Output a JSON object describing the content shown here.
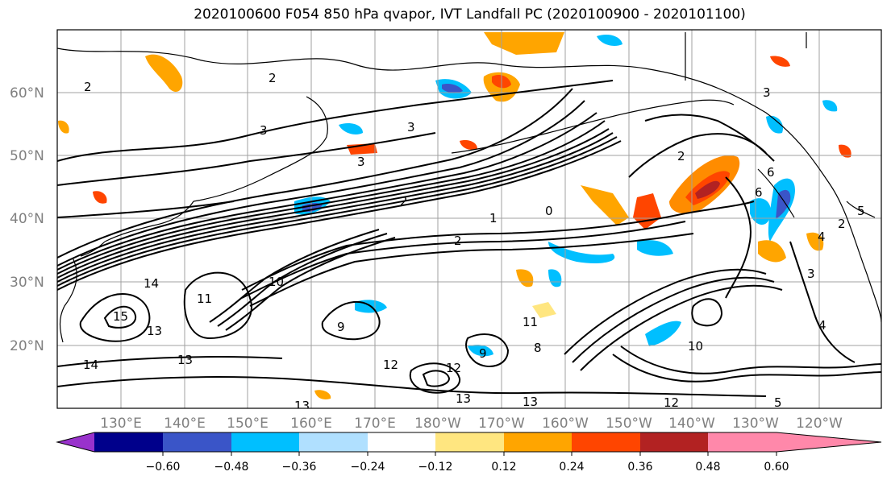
{
  "title": "2020100600 F054 850 hPa qvapor, IVT Landfall PC (2020100900 - 2020101100)",
  "map": {
    "lat_labels": [
      "60°N",
      "50°N",
      "40°N",
      "30°N",
      "20°N"
    ],
    "lon_labels": [
      "130°E",
      "140°E",
      "150°E",
      "160°E",
      "170°E",
      "180°W",
      "170°W",
      "160°W",
      "150°W",
      "140°W",
      "130°W",
      "120°W"
    ],
    "contour_labels": [
      "2",
      "2",
      "3",
      "3",
      "3",
      "2",
      "2",
      "1",
      "0",
      "2",
      "3",
      "6",
      "6",
      "4",
      "2",
      "5",
      "14",
      "15",
      "13",
      "13",
      "14",
      "11",
      "10",
      "12",
      "12",
      "13",
      "13",
      "11",
      "8",
      "10",
      "12",
      "13",
      "3",
      "4",
      "5",
      "9",
      "9"
    ]
  },
  "colorbar": {
    "ticks": [
      "−0.60",
      "−0.48",
      "−0.36",
      "−0.24",
      "−0.12",
      "0.12",
      "0.24",
      "0.36",
      "0.48",
      "0.60"
    ],
    "colors": [
      "#9932cc",
      "#00008b",
      "#3a55c8",
      "#00bfff",
      "#b0e0ff",
      "#ffffff",
      "#ffe680",
      "#ffa500",
      "#ff4500",
      "#b22222",
      "#ff88aa"
    ]
  }
}
